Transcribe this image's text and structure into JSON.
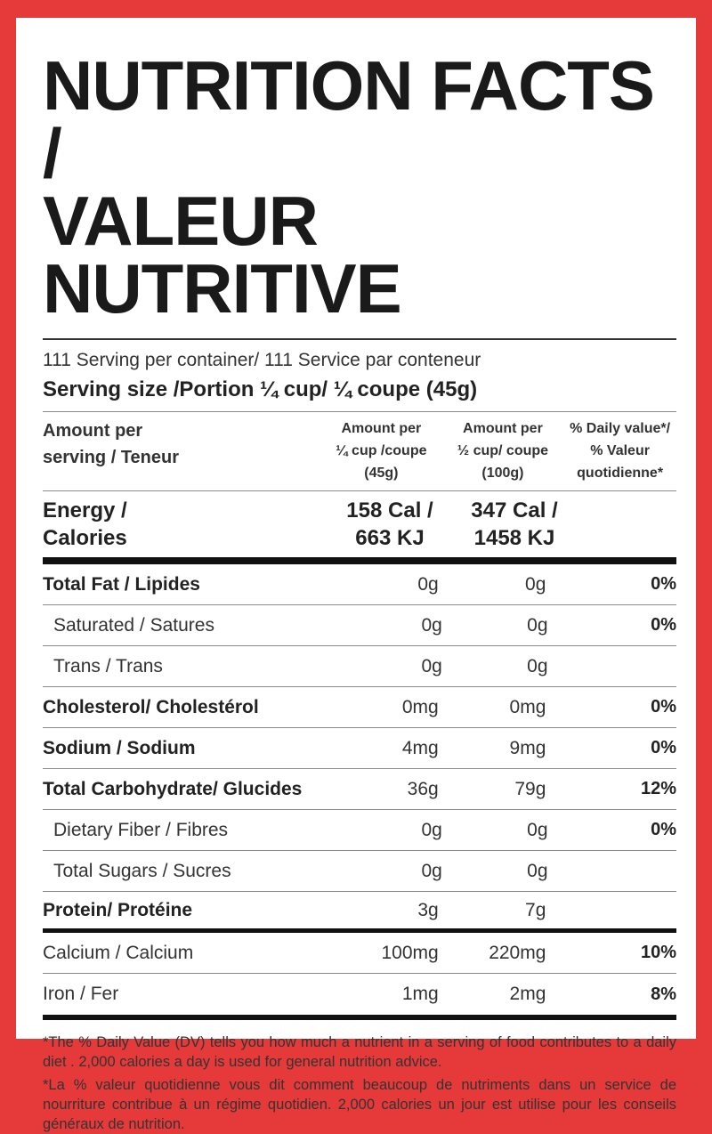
{
  "title_line1": "NUTRITION FACTS /",
  "title_line2": "VALEUR NUTRITIVE",
  "servings_per_container": "111 Serving per container/ 111 Service par conteneur",
  "serving_size": "Serving size /Portion ¼ cup/  ¼ coupe (45g)",
  "header": {
    "label_line1": "Amount per",
    "label_line2": "serving / Teneur",
    "col1": [
      "Amount per",
      "¼ cup /coupe",
      "(45g)"
    ],
    "col2": [
      "Amount per",
      "½ cup/ coupe",
      "(100g)"
    ],
    "col3": [
      "% Daily value*/",
      "% Valeur",
      "quotidienne*"
    ]
  },
  "energy": {
    "label_line1": "Energy /",
    "label_line2": "Calories",
    "col1_line1": "158 Cal /",
    "col1_line2": "663 KJ",
    "col2_line1": "347 Cal /",
    "col2_line2": "1458 KJ"
  },
  "nutrients": [
    {
      "label": "Total Fat / Lipides",
      "v1": "0g",
      "v2": "0g",
      "pct": "0%"
    },
    {
      "label": "Saturated / Satures",
      "v1": "0g",
      "v2": "0g",
      "pct": "0%"
    },
    {
      "label": "Trans / Trans",
      "v1": "0g",
      "v2": "0g",
      "pct": ""
    },
    {
      "label": "Cholesterol/ Cholestérol",
      "v1": "0mg",
      "v2": "0mg",
      "pct": "0%"
    },
    {
      "label": "Sodium / Sodium",
      "v1": "4mg",
      "v2": "9mg",
      "pct": "0%"
    },
    {
      "label": "Total Carbohydrate/ Glucides",
      "v1": "36g",
      "v2": "79g",
      "pct": "12%"
    },
    {
      "label": "Dietary Fiber  / Fibres",
      "v1": "0g",
      "v2": "0g",
      "pct": "0%"
    },
    {
      "label": "Total Sugars / Sucres",
      "v1": "0g",
      "v2": "0g",
      "pct": ""
    },
    {
      "label": "Protein/ Protéine",
      "v1": "3g",
      "v2": "7g",
      "pct": ""
    },
    {
      "label": "Calcium / Calcium",
      "v1": "100mg",
      "v2": "220mg",
      "pct": "10%"
    },
    {
      "label": "Iron / Fer",
      "v1": "1mg",
      "v2": "2mg",
      "pct": "8%"
    }
  ],
  "footnote_en": "*The % Daily Value (DV) tells you how much a nutrient in a serving of food contributes to a daily diet . 2,000 calories a day is used for general nutrition advice.",
  "footnote_fr": "*La  % valeur quotidienne vous dit comment beaucoup de nutriments dans un service de nourriture contribue à un régime quotidien. 2,000 calories un jour est utilise pour les conseils généraux de nutrition.",
  "colors": {
    "border": "#e63a3a",
    "panel": "#ffffff",
    "text": "#222222"
  }
}
